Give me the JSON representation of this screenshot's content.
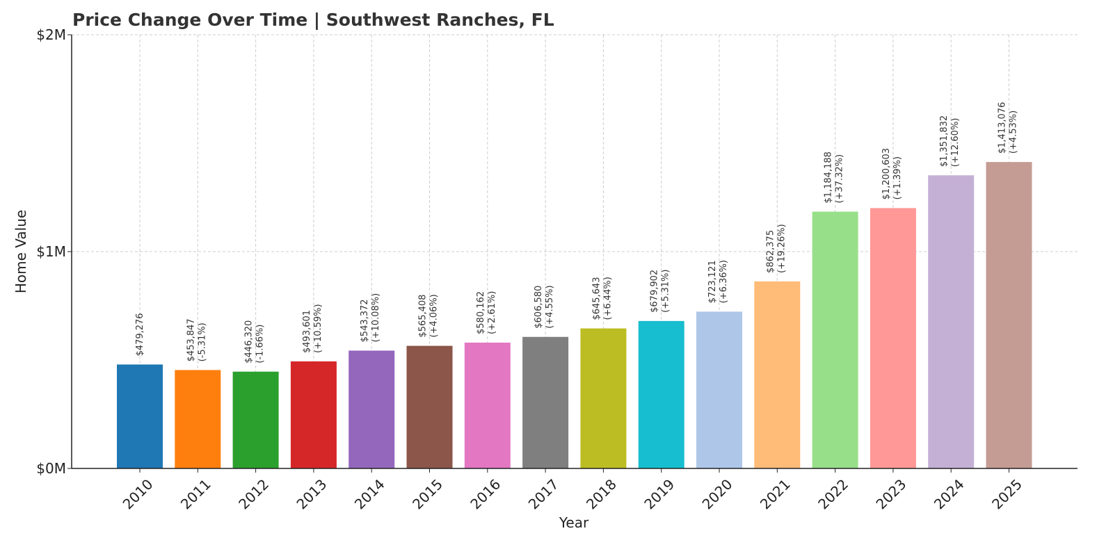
{
  "chart_data": {
    "type": "bar",
    "title": "Price Change Over Time | Southwest Ranches, FL",
    "xlabel": "Year",
    "ylabel": "Home Value",
    "ylim": [
      0,
      2000000
    ],
    "y_ticks": [
      {
        "value": 0,
        "label": "$0M"
      },
      {
        "value": 1000000,
        "label": "$1M"
      },
      {
        "value": 2000000,
        "label": "$2M"
      }
    ],
    "grid": true,
    "categories": [
      "2010",
      "2011",
      "2012",
      "2013",
      "2014",
      "2015",
      "2016",
      "2017",
      "2018",
      "2019",
      "2020",
      "2021",
      "2022",
      "2023",
      "2024",
      "2025"
    ],
    "values": [
      479276,
      453847,
      446320,
      493601,
      543372,
      565408,
      580162,
      606580,
      645643,
      679902,
      723121,
      862375,
      1184188,
      1200603,
      1351832,
      1413076
    ],
    "value_labels": [
      "$479,276",
      "$453,847",
      "$446,320",
      "$493,601",
      "$543,372",
      "$565,408",
      "$580,162",
      "$606,580",
      "$645,643",
      "$679,902",
      "$723,121",
      "$862,375",
      "$1,184,188",
      "$1,200,603",
      "$1,351,832",
      "$1,413,076"
    ],
    "change_labels": [
      "",
      "(-5.31%)",
      "(-1.66%)",
      "(+10.59%)",
      "(+10.08%)",
      "(+4.06%)",
      "(+2.61%)",
      "(+4.55%)",
      "(+6.44%)",
      "(+5.31%)",
      "(+6.36%)",
      "(+19.26%)",
      "(+37.32%)",
      "(+1.39%)",
      "(+12.60%)",
      "(+4.53%)"
    ],
    "colors": [
      "#1f77b4",
      "#ff7f0e",
      "#2ca02c",
      "#d62728",
      "#9467bd",
      "#8c564b",
      "#e377c2",
      "#7f7f7f",
      "#bcbd22",
      "#17becf",
      "#aec7e8",
      "#ffbb78",
      "#98df8a",
      "#ff9896",
      "#c5b0d5",
      "#c49c94"
    ]
  }
}
